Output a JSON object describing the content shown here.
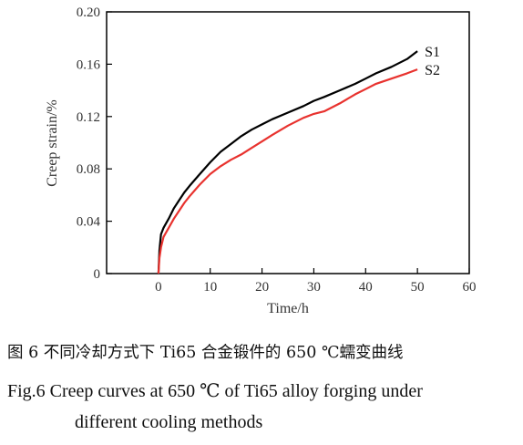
{
  "chart_data": {
    "type": "line",
    "title": "",
    "xlabel": "Time/h",
    "ylabel": "Creep strain/%",
    "xlim": [
      -10,
      60
    ],
    "ylim": [
      0,
      0.2
    ],
    "xticks": [
      0,
      10,
      20,
      30,
      40,
      50,
      60
    ],
    "yticks": [
      0,
      0.04,
      0.08,
      0.12,
      0.16,
      0.2
    ],
    "ytick_labels": [
      "0",
      "0.04",
      "0.08",
      "0.12",
      "0.16",
      "0.20"
    ],
    "xtick_labels": [
      "0",
      "10",
      "20",
      "30",
      "40",
      "50",
      "60"
    ],
    "grid": false,
    "legend": "inline labels at line ends",
    "series": [
      {
        "name": "S1",
        "color": "#000000",
        "x": [
          0,
          0.2,
          0.5,
          1,
          2,
          3,
          4,
          5,
          6,
          8,
          10,
          12,
          14,
          16,
          18,
          20,
          22,
          25,
          28,
          30,
          32,
          35,
          38,
          40,
          42,
          45,
          48,
          50
        ],
        "y": [
          0,
          0.018,
          0.03,
          0.035,
          0.042,
          0.05,
          0.056,
          0.062,
          0.067,
          0.076,
          0.085,
          0.093,
          0.099,
          0.105,
          0.11,
          0.114,
          0.118,
          0.123,
          0.128,
          0.132,
          0.135,
          0.14,
          0.145,
          0.149,
          0.153,
          0.158,
          0.164,
          0.17
        ]
      },
      {
        "name": "S2",
        "color": "#e8322e",
        "x": [
          0,
          0.2,
          0.5,
          1,
          2,
          3,
          4,
          5,
          6,
          8,
          10,
          12,
          14,
          16,
          18,
          20,
          22,
          25,
          28,
          30,
          32,
          35,
          38,
          40,
          42,
          45,
          48,
          50
        ],
        "y": [
          0,
          0.012,
          0.02,
          0.028,
          0.035,
          0.042,
          0.048,
          0.054,
          0.059,
          0.068,
          0.076,
          0.082,
          0.087,
          0.091,
          0.096,
          0.101,
          0.106,
          0.113,
          0.119,
          0.122,
          0.124,
          0.13,
          0.137,
          0.141,
          0.145,
          0.149,
          0.153,
          0.156
        ]
      }
    ]
  },
  "caption": {
    "zh": "图 6   不同冷却方式下 Ti65 合金锻件的 650 ℃蠕变曲线",
    "en_line1": "Fig.6    Creep curves at 650 ℃ of Ti65 alloy forging under",
    "en_line2": "different cooling methods"
  }
}
